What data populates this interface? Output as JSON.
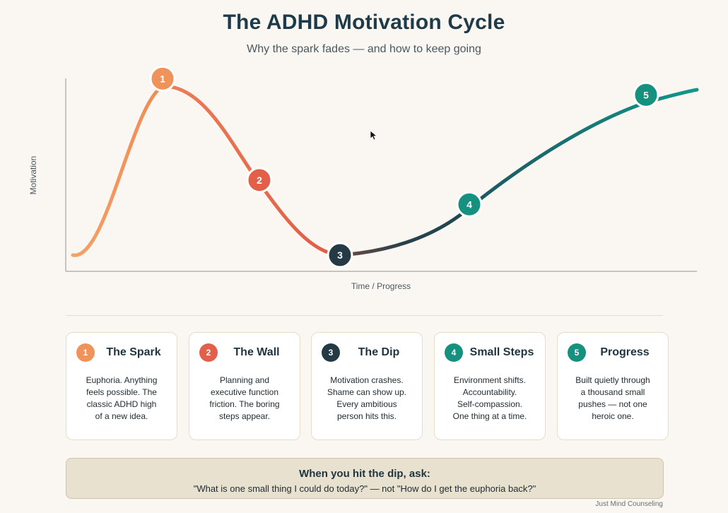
{
  "title": "The ADHD Motivation Cycle",
  "subtitle": "Why the spark fades — and how to keep going",
  "chart_data": {
    "type": "line",
    "xlabel": "Time / Progress",
    "ylabel": "Motivation",
    "grid": false,
    "stages": [
      {
        "number": "1",
        "name": "The Spark",
        "motivation": 0.95,
        "color": "#f0935a"
      },
      {
        "number": "2",
        "name": "The Wall",
        "motivation": 0.45,
        "color": "#e2604a"
      },
      {
        "number": "3",
        "name": "The Dip",
        "motivation": 0.08,
        "color": "#243a45"
      },
      {
        "number": "4",
        "name": "Small Steps",
        "motivation": 0.33,
        "color": "#16917f"
      },
      {
        "number": "5",
        "name": "Progress",
        "motivation": 0.87,
        "color": "#16917f"
      }
    ]
  },
  "cards": [
    {
      "number": "1",
      "title": "The Spark",
      "color": "#f0935a",
      "lines": [
        "Euphoria. Anything",
        "feels possible. The",
        "classic ADHD high",
        "of a new idea."
      ]
    },
    {
      "number": "2",
      "title": "The Wall",
      "color": "#e2604a",
      "lines": [
        "Planning and",
        "executive function",
        "friction. The boring",
        "steps appear."
      ]
    },
    {
      "number": "3",
      "title": "The Dip",
      "color": "#243a45",
      "lines": [
        "Motivation crashes.",
        "Shame can show up.",
        "Every ambitious",
        "person hits this."
      ]
    },
    {
      "number": "4",
      "title": "Small Steps",
      "color": "#16917f",
      "lines": [
        "Environment shifts.",
        "Accountability.",
        "Self-compassion.",
        "One thing at a time."
      ]
    },
    {
      "number": "5",
      "title": "Progress",
      "color": "#16917f",
      "lines": [
        "Built quietly through",
        "a thousand small",
        "pushes — not one",
        "heroic one."
      ]
    }
  ],
  "callout": {
    "title": "When you hit the dip, ask:",
    "text": "\"What is one small thing I could do today?\" — not \"How do I get the euphoria back?\""
  },
  "credit": "Just Mind Counseling"
}
